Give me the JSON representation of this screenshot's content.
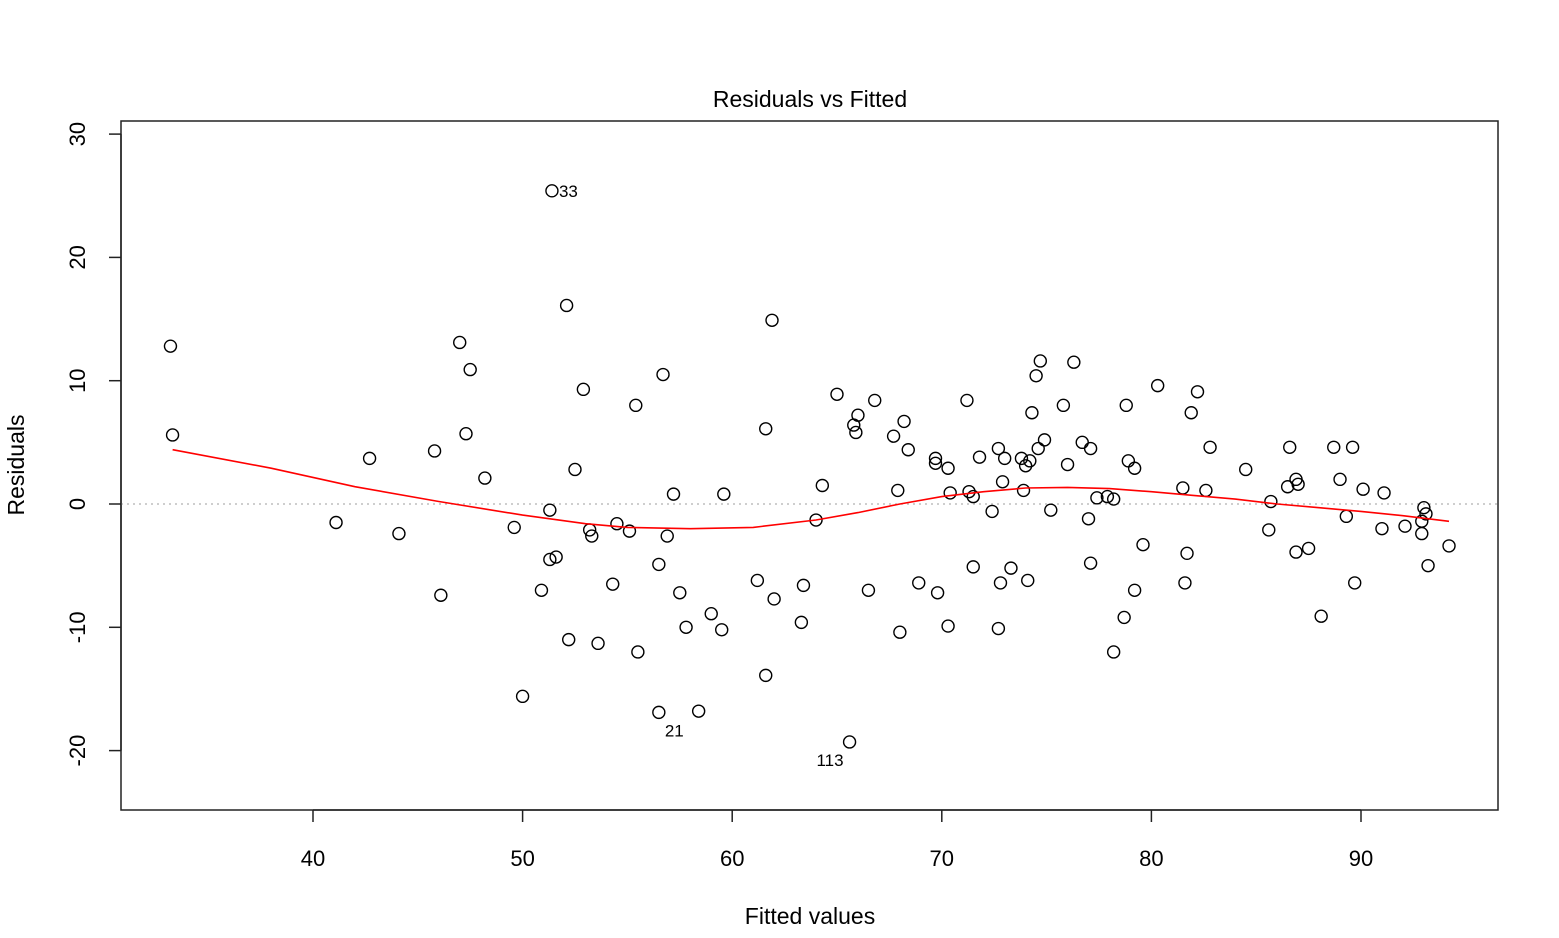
{
  "chart_data": {
    "type": "scatter",
    "title": "Residuals vs Fitted",
    "xlabel": "Fitted values",
    "ylabel": "Residuals",
    "xlim": [
      31,
      97
    ],
    "ylim": [
      -25,
      30
    ],
    "x_ticks": [
      40,
      50,
      60,
      70,
      80,
      90
    ],
    "y_ticks": [
      -20,
      -10,
      0,
      10,
      20,
      30
    ],
    "x_tick_labels": [
      "40",
      "50",
      "60",
      "70",
      "80",
      "90"
    ],
    "y_tick_labels": [
      "-20",
      "-10",
      "0",
      "10",
      "20",
      "30"
    ],
    "grid": false,
    "reference_line": {
      "y": 0,
      "style": "dotted",
      "color": "#bdbdbd"
    },
    "point_color": "#000000",
    "smooth_color": "#ff0000",
    "points": [
      {
        "x": 33.2,
        "y": 12.8
      },
      {
        "x": 33.3,
        "y": 5.6
      },
      {
        "x": 41.1,
        "y": -1.5
      },
      {
        "x": 42.7,
        "y": 3.7
      },
      {
        "x": 44.1,
        "y": -2.4
      },
      {
        "x": 45.8,
        "y": 4.3
      },
      {
        "x": 46.1,
        "y": -7.4
      },
      {
        "x": 47.0,
        "y": 13.1
      },
      {
        "x": 47.3,
        "y": 5.7
      },
      {
        "x": 47.5,
        "y": 10.9
      },
      {
        "x": 48.2,
        "y": 2.1
      },
      {
        "x": 49.6,
        "y": -1.9
      },
      {
        "x": 50.0,
        "y": -15.6
      },
      {
        "x": 50.9,
        "y": -7.0
      },
      {
        "x": 51.3,
        "y": -4.5
      },
      {
        "x": 51.3,
        "y": -0.5
      },
      {
        "x": 51.4,
        "y": 25.4
      },
      {
        "x": 51.6,
        "y": -4.3
      },
      {
        "x": 52.1,
        "y": 16.1
      },
      {
        "x": 52.2,
        "y": -11.0
      },
      {
        "x": 52.5,
        "y": 2.8
      },
      {
        "x": 52.9,
        "y": 9.3
      },
      {
        "x": 53.2,
        "y": -2.1
      },
      {
        "x": 53.3,
        "y": -2.6
      },
      {
        "x": 53.6,
        "y": -11.3
      },
      {
        "x": 54.3,
        "y": -6.5
      },
      {
        "x": 54.5,
        "y": -1.6
      },
      {
        "x": 55.1,
        "y": -2.2
      },
      {
        "x": 55.4,
        "y": 8.0
      },
      {
        "x": 55.5,
        "y": -12.0
      },
      {
        "x": 56.5,
        "y": -16.9
      },
      {
        "x": 56.5,
        "y": -4.9
      },
      {
        "x": 56.7,
        "y": 10.5
      },
      {
        "x": 56.9,
        "y": -2.6
      },
      {
        "x": 57.2,
        "y": 0.8
      },
      {
        "x": 57.5,
        "y": -7.2
      },
      {
        "x": 57.8,
        "y": -10.0
      },
      {
        "x": 58.4,
        "y": -16.8
      },
      {
        "x": 59.0,
        "y": -8.9
      },
      {
        "x": 59.5,
        "y": -10.2
      },
      {
        "x": 59.6,
        "y": 0.8
      },
      {
        "x": 61.2,
        "y": -6.2
      },
      {
        "x": 61.6,
        "y": 6.1
      },
      {
        "x": 61.6,
        "y": -13.9
      },
      {
        "x": 61.9,
        "y": 14.9
      },
      {
        "x": 62.0,
        "y": -7.7
      },
      {
        "x": 63.3,
        "y": -9.6
      },
      {
        "x": 63.4,
        "y": -6.6
      },
      {
        "x": 64.0,
        "y": -1.3
      },
      {
        "x": 64.3,
        "y": 1.5
      },
      {
        "x": 65.0,
        "y": 8.9
      },
      {
        "x": 65.6,
        "y": -19.3
      },
      {
        "x": 65.8,
        "y": 6.4
      },
      {
        "x": 65.9,
        "y": 5.8
      },
      {
        "x": 66.0,
        "y": 7.2
      },
      {
        "x": 66.5,
        "y": -7.0
      },
      {
        "x": 66.8,
        "y": 8.4
      },
      {
        "x": 67.7,
        "y": 5.5
      },
      {
        "x": 67.9,
        "y": 1.1
      },
      {
        "x": 68.0,
        "y": -10.4
      },
      {
        "x": 68.2,
        "y": 6.7
      },
      {
        "x": 68.4,
        "y": 4.4
      },
      {
        "x": 68.9,
        "y": -6.4
      },
      {
        "x": 69.7,
        "y": 3.7
      },
      {
        "x": 69.7,
        "y": 3.3
      },
      {
        "x": 69.8,
        "y": -7.2
      },
      {
        "x": 70.3,
        "y": 2.9
      },
      {
        "x": 70.3,
        "y": -9.9
      },
      {
        "x": 70.4,
        "y": 0.9
      },
      {
        "x": 71.2,
        "y": 8.4
      },
      {
        "x": 71.3,
        "y": 1.0
      },
      {
        "x": 71.5,
        "y": 0.6
      },
      {
        "x": 71.5,
        "y": -5.1
      },
      {
        "x": 71.8,
        "y": 3.8
      },
      {
        "x": 72.4,
        "y": -0.6
      },
      {
        "x": 72.7,
        "y": 4.5
      },
      {
        "x": 72.7,
        "y": -10.1
      },
      {
        "x": 72.8,
        "y": -6.4
      },
      {
        "x": 72.9,
        "y": 1.8
      },
      {
        "x": 73.0,
        "y": 3.7
      },
      {
        "x": 73.3,
        "y": -5.2
      },
      {
        "x": 73.8,
        "y": 3.7
      },
      {
        "x": 73.9,
        "y": 1.1
      },
      {
        "x": 74.0,
        "y": 3.1
      },
      {
        "x": 74.1,
        "y": -6.2
      },
      {
        "x": 74.2,
        "y": 3.5
      },
      {
        "x": 74.3,
        "y": 7.4
      },
      {
        "x": 74.5,
        "y": 10.4
      },
      {
        "x": 74.6,
        "y": 4.5
      },
      {
        "x": 74.7,
        "y": 11.6
      },
      {
        "x": 74.9,
        "y": 5.2
      },
      {
        "x": 75.2,
        "y": -0.5
      },
      {
        "x": 75.8,
        "y": 8.0
      },
      {
        "x": 76.0,
        "y": 3.2
      },
      {
        "x": 76.3,
        "y": 11.5
      },
      {
        "x": 76.7,
        "y": 5.0
      },
      {
        "x": 77.0,
        "y": -1.2
      },
      {
        "x": 77.1,
        "y": 4.5
      },
      {
        "x": 77.1,
        "y": -4.8
      },
      {
        "x": 77.4,
        "y": 0.5
      },
      {
        "x": 77.9,
        "y": 0.6
      },
      {
        "x": 78.2,
        "y": 0.4
      },
      {
        "x": 78.2,
        "y": -12.0
      },
      {
        "x": 78.7,
        "y": -9.2
      },
      {
        "x": 78.8,
        "y": 8.0
      },
      {
        "x": 78.9,
        "y": 3.5
      },
      {
        "x": 79.2,
        "y": 2.9
      },
      {
        "x": 79.2,
        "y": -7.0
      },
      {
        "x": 79.6,
        "y": -3.3
      },
      {
        "x": 80.3,
        "y": 9.6
      },
      {
        "x": 81.5,
        "y": 1.3
      },
      {
        "x": 81.6,
        "y": -6.4
      },
      {
        "x": 81.7,
        "y": -4.0
      },
      {
        "x": 81.9,
        "y": 7.4
      },
      {
        "x": 82.2,
        "y": 9.1
      },
      {
        "x": 82.6,
        "y": 1.1
      },
      {
        "x": 82.8,
        "y": 4.6
      },
      {
        "x": 84.5,
        "y": 2.8
      },
      {
        "x": 85.6,
        "y": -2.1
      },
      {
        "x": 85.7,
        "y": 0.2
      },
      {
        "x": 86.5,
        "y": 1.4
      },
      {
        "x": 86.6,
        "y": 4.6
      },
      {
        "x": 86.9,
        "y": 2.0
      },
      {
        "x": 86.9,
        "y": -3.9
      },
      {
        "x": 87.0,
        "y": 1.6
      },
      {
        "x": 87.5,
        "y": -3.6
      },
      {
        "x": 88.1,
        "y": -9.1
      },
      {
        "x": 88.7,
        "y": 4.6
      },
      {
        "x": 89.0,
        "y": 2.0
      },
      {
        "x": 89.3,
        "y": -1.0
      },
      {
        "x": 89.6,
        "y": 4.6
      },
      {
        "x": 89.7,
        "y": -6.4
      },
      {
        "x": 90.1,
        "y": 1.2
      },
      {
        "x": 91.0,
        "y": -2.0
      },
      {
        "x": 91.1,
        "y": 0.9
      },
      {
        "x": 92.1,
        "y": -1.8
      },
      {
        "x": 92.9,
        "y": -1.4
      },
      {
        "x": 92.9,
        "y": -2.4
      },
      {
        "x": 93.0,
        "y": -0.3
      },
      {
        "x": 93.1,
        "y": -0.8
      },
      {
        "x": 93.2,
        "y": -5.0
      },
      {
        "x": 94.2,
        "y": -3.4
      }
    ],
    "labeled_points": [
      {
        "label": "33",
        "x": 51.4,
        "y": 25.4,
        "position": "right"
      },
      {
        "label": "21",
        "x": 56.5,
        "y": -16.9,
        "position": "below-right"
      },
      {
        "label": "113",
        "x": 65.6,
        "y": -19.3,
        "position": "below-left"
      }
    ],
    "smooth_line": [
      {
        "x": 33.3,
        "y": 4.4
      },
      {
        "x": 38,
        "y": 2.9
      },
      {
        "x": 42,
        "y": 1.4
      },
      {
        "x": 46,
        "y": 0.2
      },
      {
        "x": 50,
        "y": -0.9
      },
      {
        "x": 53,
        "y": -1.6
      },
      {
        "x": 55,
        "y": -1.9
      },
      {
        "x": 58,
        "y": -2.0
      },
      {
        "x": 61,
        "y": -1.9
      },
      {
        "x": 64,
        "y": -1.3
      },
      {
        "x": 66,
        "y": -0.7
      },
      {
        "x": 68,
        "y": 0.0
      },
      {
        "x": 70,
        "y": 0.6
      },
      {
        "x": 72,
        "y": 1.0
      },
      {
        "x": 74,
        "y": 1.3
      },
      {
        "x": 76,
        "y": 1.35
      },
      {
        "x": 78,
        "y": 1.25
      },
      {
        "x": 80,
        "y": 1.0
      },
      {
        "x": 82,
        "y": 0.7
      },
      {
        "x": 84,
        "y": 0.4
      },
      {
        "x": 86,
        "y": 0.0
      },
      {
        "x": 88,
        "y": -0.3
      },
      {
        "x": 90,
        "y": -0.6
      },
      {
        "x": 92,
        "y": -0.95
      },
      {
        "x": 94.2,
        "y": -1.4
      }
    ]
  }
}
